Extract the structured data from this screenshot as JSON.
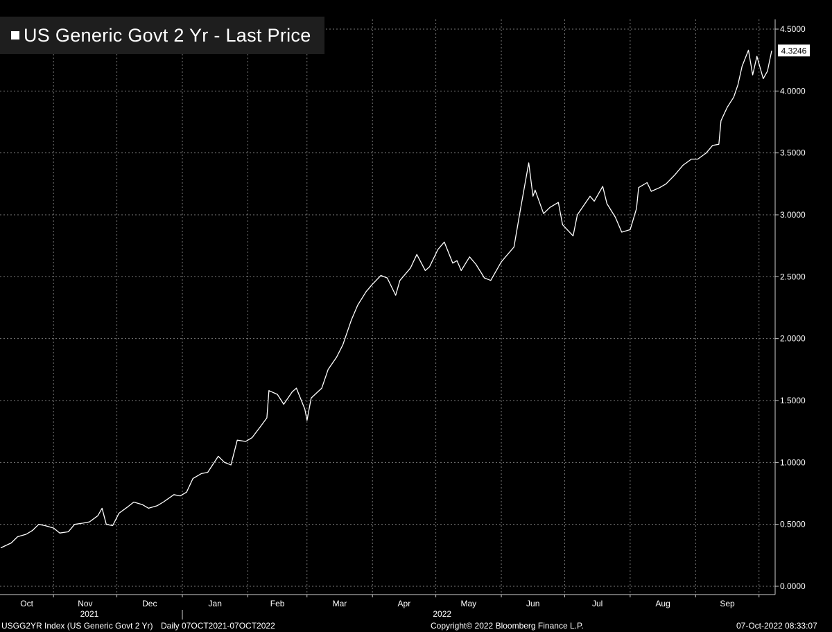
{
  "chart_data": {
    "type": "line",
    "title": "",
    "xlabel": "",
    "ylabel": "",
    "ylim": [
      -0.05,
      4.6
    ],
    "y_ticks": [
      "0.0000",
      "0.5000",
      "1.0000",
      "1.5000",
      "2.0000",
      "2.5000",
      "3.0000",
      "3.5000",
      "4.0000",
      "4.5000"
    ],
    "y_tick_values": [
      0,
      0.5,
      1.0,
      1.5,
      2.0,
      2.5,
      3.0,
      3.5,
      4.0,
      4.5
    ],
    "x_range": [
      "2021-10-07",
      "2022-10-07"
    ],
    "x_months": [
      {
        "label": "Oct",
        "start": "2021-10-01"
      },
      {
        "label": "Nov",
        "start": "2021-11-01"
      },
      {
        "label": "Dec",
        "start": "2021-12-01"
      },
      {
        "label": "Jan",
        "start": "2022-01-01"
      },
      {
        "label": "Feb",
        "start": "2022-02-01"
      },
      {
        "label": "Mar",
        "start": "2022-03-01"
      },
      {
        "label": "Apr",
        "start": "2022-04-01"
      },
      {
        "label": "May",
        "start": "2022-05-01"
      },
      {
        "label": "Jun",
        "start": "2022-06-01"
      },
      {
        "label": "Jul",
        "start": "2022-07-01"
      },
      {
        "label": "Aug",
        "start": "2022-08-01"
      },
      {
        "label": "Sep",
        "start": "2022-09-01"
      },
      {
        "label": "Oct",
        "start": "2022-10-01"
      }
    ],
    "x_years": [
      {
        "label": "2021",
        "center": "2021-11-18"
      },
      {
        "label": "2022",
        "center": "2022-05-04"
      }
    ],
    "grid": true,
    "legend": "top-left",
    "last_value_label": "4.3246",
    "series": [
      {
        "name": "US Generic Govt 2 Yr - Last Price",
        "color": "#ffffff",
        "points": [
          [
            "2021-10-07",
            0.31
          ],
          [
            "2021-10-12",
            0.35
          ],
          [
            "2021-10-15",
            0.4
          ],
          [
            "2021-10-19",
            0.42
          ],
          [
            "2021-10-22",
            0.45
          ],
          [
            "2021-10-25",
            0.5
          ],
          [
            "2021-10-28",
            0.49
          ],
          [
            "2021-11-01",
            0.47
          ],
          [
            "2021-11-04",
            0.43
          ],
          [
            "2021-11-08",
            0.44
          ],
          [
            "2021-11-11",
            0.5
          ],
          [
            "2021-11-15",
            0.51
          ],
          [
            "2021-11-18",
            0.52
          ],
          [
            "2021-11-22",
            0.57
          ],
          [
            "2021-11-24",
            0.63
          ],
          [
            "2021-11-26",
            0.5
          ],
          [
            "2021-11-29",
            0.49
          ],
          [
            "2021-12-02",
            0.59
          ],
          [
            "2021-12-06",
            0.64
          ],
          [
            "2021-12-09",
            0.68
          ],
          [
            "2021-12-13",
            0.66
          ],
          [
            "2021-12-16",
            0.63
          ],
          [
            "2021-12-20",
            0.65
          ],
          [
            "2021-12-23",
            0.68
          ],
          [
            "2021-12-28",
            0.74
          ],
          [
            "2021-12-31",
            0.73
          ],
          [
            "2022-01-03",
            0.76
          ],
          [
            "2022-01-06",
            0.87
          ],
          [
            "2022-01-10",
            0.91
          ],
          [
            "2022-01-13",
            0.92
          ],
          [
            "2022-01-18",
            1.05
          ],
          [
            "2022-01-21",
            1.0
          ],
          [
            "2022-01-24",
            0.98
          ],
          [
            "2022-01-27",
            1.18
          ],
          [
            "2022-01-31",
            1.17
          ],
          [
            "2022-02-03",
            1.2
          ],
          [
            "2022-02-07",
            1.29
          ],
          [
            "2022-02-10",
            1.36
          ],
          [
            "2022-02-11",
            1.58
          ],
          [
            "2022-02-15",
            1.55
          ],
          [
            "2022-02-18",
            1.47
          ],
          [
            "2022-02-22",
            1.57
          ],
          [
            "2022-02-24",
            1.6
          ],
          [
            "2022-02-28",
            1.43
          ],
          [
            "2022-03-01",
            1.34
          ],
          [
            "2022-03-03",
            1.52
          ],
          [
            "2022-03-08",
            1.6
          ],
          [
            "2022-03-11",
            1.75
          ],
          [
            "2022-03-15",
            1.85
          ],
          [
            "2022-03-18",
            1.95
          ],
          [
            "2022-03-22",
            2.15
          ],
          [
            "2022-03-25",
            2.27
          ],
          [
            "2022-03-29",
            2.38
          ],
          [
            "2022-04-01",
            2.44
          ],
          [
            "2022-04-05",
            2.51
          ],
          [
            "2022-04-08",
            2.49
          ],
          [
            "2022-04-12",
            2.35
          ],
          [
            "2022-04-14",
            2.47
          ],
          [
            "2022-04-19",
            2.57
          ],
          [
            "2022-04-22",
            2.68
          ],
          [
            "2022-04-26",
            2.55
          ],
          [
            "2022-04-28",
            2.58
          ],
          [
            "2022-05-02",
            2.72
          ],
          [
            "2022-05-05",
            2.78
          ],
          [
            "2022-05-09",
            2.61
          ],
          [
            "2022-05-11",
            2.63
          ],
          [
            "2022-05-13",
            2.55
          ],
          [
            "2022-05-17",
            2.66
          ],
          [
            "2022-05-20",
            2.6
          ],
          [
            "2022-05-24",
            2.49
          ],
          [
            "2022-05-27",
            2.47
          ],
          [
            "2022-06-01",
            2.62
          ],
          [
            "2022-06-03",
            2.66
          ],
          [
            "2022-06-07",
            2.74
          ],
          [
            "2022-06-10",
            3.04
          ],
          [
            "2022-06-14",
            3.42
          ],
          [
            "2022-06-16",
            3.15
          ],
          [
            "2022-06-17",
            3.2
          ],
          [
            "2022-06-21",
            3.01
          ],
          [
            "2022-06-24",
            3.06
          ],
          [
            "2022-06-28",
            3.1
          ],
          [
            "2022-06-30",
            2.92
          ],
          [
            "2022-07-05",
            2.83
          ],
          [
            "2022-07-07",
            3.0
          ],
          [
            "2022-07-11",
            3.1
          ],
          [
            "2022-07-13",
            3.15
          ],
          [
            "2022-07-15",
            3.11
          ],
          [
            "2022-07-19",
            3.23
          ],
          [
            "2022-07-21",
            3.09
          ],
          [
            "2022-07-25",
            2.98
          ],
          [
            "2022-07-28",
            2.86
          ],
          [
            "2022-08-01",
            2.88
          ],
          [
            "2022-08-04",
            3.05
          ],
          [
            "2022-08-05",
            3.22
          ],
          [
            "2022-08-09",
            3.26
          ],
          [
            "2022-08-11",
            3.19
          ],
          [
            "2022-08-15",
            3.22
          ],
          [
            "2022-08-18",
            3.25
          ],
          [
            "2022-08-22",
            3.32
          ],
          [
            "2022-08-26",
            3.4
          ],
          [
            "2022-08-30",
            3.45
          ],
          [
            "2022-09-02",
            3.45
          ],
          [
            "2022-09-06",
            3.5
          ],
          [
            "2022-09-09",
            3.56
          ],
          [
            "2022-09-12",
            3.57
          ],
          [
            "2022-09-13",
            3.76
          ],
          [
            "2022-09-16",
            3.87
          ],
          [
            "2022-09-19",
            3.95
          ],
          [
            "2022-09-21",
            4.05
          ],
          [
            "2022-09-23",
            4.2
          ],
          [
            "2022-09-26",
            4.33
          ],
          [
            "2022-09-28",
            4.13
          ],
          [
            "2022-09-30",
            4.28
          ],
          [
            "2022-10-03",
            4.1
          ],
          [
            "2022-10-05",
            4.16
          ],
          [
            "2022-10-07",
            4.3246
          ]
        ]
      }
    ]
  },
  "footer": {
    "ticker": "USGG2YR Index (US Generic Govt 2 Yr)",
    "period": "Daily 07OCT2021-07OCT2022",
    "copyright": "Copyright© 2022 Bloomberg Finance L.P.",
    "timestamp": "07-Oct-2022 08:33:07"
  },
  "colors": {
    "background": "#000000",
    "grid": "#7a7a7a",
    "line": "#ffffff",
    "legend_bg": "#1e1e1e"
  }
}
